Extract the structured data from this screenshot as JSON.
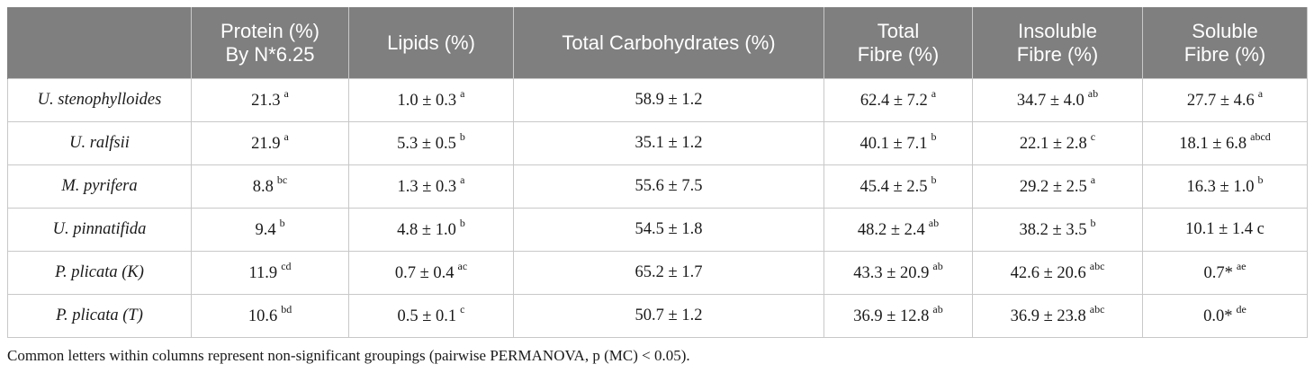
{
  "table": {
    "headers": [
      "",
      "Protein (%)\nBy N*6.25",
      "Lipids (%)",
      "Total Carbohydrates (%)",
      "Total\nFibre (%)",
      "Insoluble\nFibre (%)",
      "Soluble\nFibre (%)"
    ],
    "rows": [
      {
        "species": "U. stenophylloides",
        "cells": [
          {
            "v": "21.3",
            "s": "a"
          },
          {
            "v": "1.0 ± 0.3",
            "s": "a"
          },
          {
            "v": "58.9 ± 1.2",
            "s": ""
          },
          {
            "v": "62.4 ± 7.2",
            "s": "a"
          },
          {
            "v": "34.7 ± 4.0",
            "s": "ab"
          },
          {
            "v": "27.7 ± 4.6",
            "s": "a"
          }
        ]
      },
      {
        "species": "U. ralfsii",
        "cells": [
          {
            "v": "21.9",
            "s": "a"
          },
          {
            "v": "5.3 ± 0.5",
            "s": "b"
          },
          {
            "v": "35.1 ± 1.2",
            "s": ""
          },
          {
            "v": "40.1 ± 7.1",
            "s": "b"
          },
          {
            "v": "22.1 ± 2.8",
            "s": "c"
          },
          {
            "v": "18.1 ± 6.8",
            "s": "abcd"
          }
        ]
      },
      {
        "species": "M. pyrifera",
        "cells": [
          {
            "v": "8.8",
            "s": "bc"
          },
          {
            "v": "1.3 ± 0.3",
            "s": "a"
          },
          {
            "v": "55.6 ± 7.5",
            "s": ""
          },
          {
            "v": "45.4 ± 2.5",
            "s": "b"
          },
          {
            "v": "29.2 ± 2.5",
            "s": "a"
          },
          {
            "v": "16.3 ± 1.0",
            "s": "b"
          }
        ]
      },
      {
        "species": "U. pinnatifida",
        "cells": [
          {
            "v": "9.4",
            "s": "b"
          },
          {
            "v": "4.8 ± 1.0",
            "s": "b"
          },
          {
            "v": "54.5 ± 1.8",
            "s": ""
          },
          {
            "v": "48.2 ± 2.4",
            "s": "ab"
          },
          {
            "v": "38.2 ± 3.5",
            "s": "b"
          },
          {
            "v": "10.1 ± 1.4 c",
            "s": ""
          }
        ]
      },
      {
        "species": "P. plicata (K)",
        "cells": [
          {
            "v": "11.9",
            "s": "cd"
          },
          {
            "v": "0.7 ± 0.4",
            "s": "ac"
          },
          {
            "v": "65.2 ± 1.7",
            "s": ""
          },
          {
            "v": "43.3 ± 20.9",
            "s": "ab"
          },
          {
            "v": "42.6 ± 20.6",
            "s": "abc"
          },
          {
            "v": "0.7*",
            "s": "ae"
          }
        ]
      },
      {
        "species": "P. plicata (T)",
        "cells": [
          {
            "v": "10.6",
            "s": "bd"
          },
          {
            "v": "0.5 ± 0.1",
            "s": "c"
          },
          {
            "v": "50.7 ± 1.2",
            "s": ""
          },
          {
            "v": "36.9 ± 12.8",
            "s": "ab"
          },
          {
            "v": "36.9 ± 23.8",
            "s": "abc"
          },
          {
            "v": "0.0*",
            "s": "de"
          }
        ]
      }
    ]
  },
  "footnote": "Common letters within columns represent non-significant groupings (pairwise PERMANOVA, p (MC) < 0.05).",
  "colors": {
    "header_bg": "#7f7f7f",
    "header_text": "#ffffff",
    "grid": "#c8c8c8"
  }
}
